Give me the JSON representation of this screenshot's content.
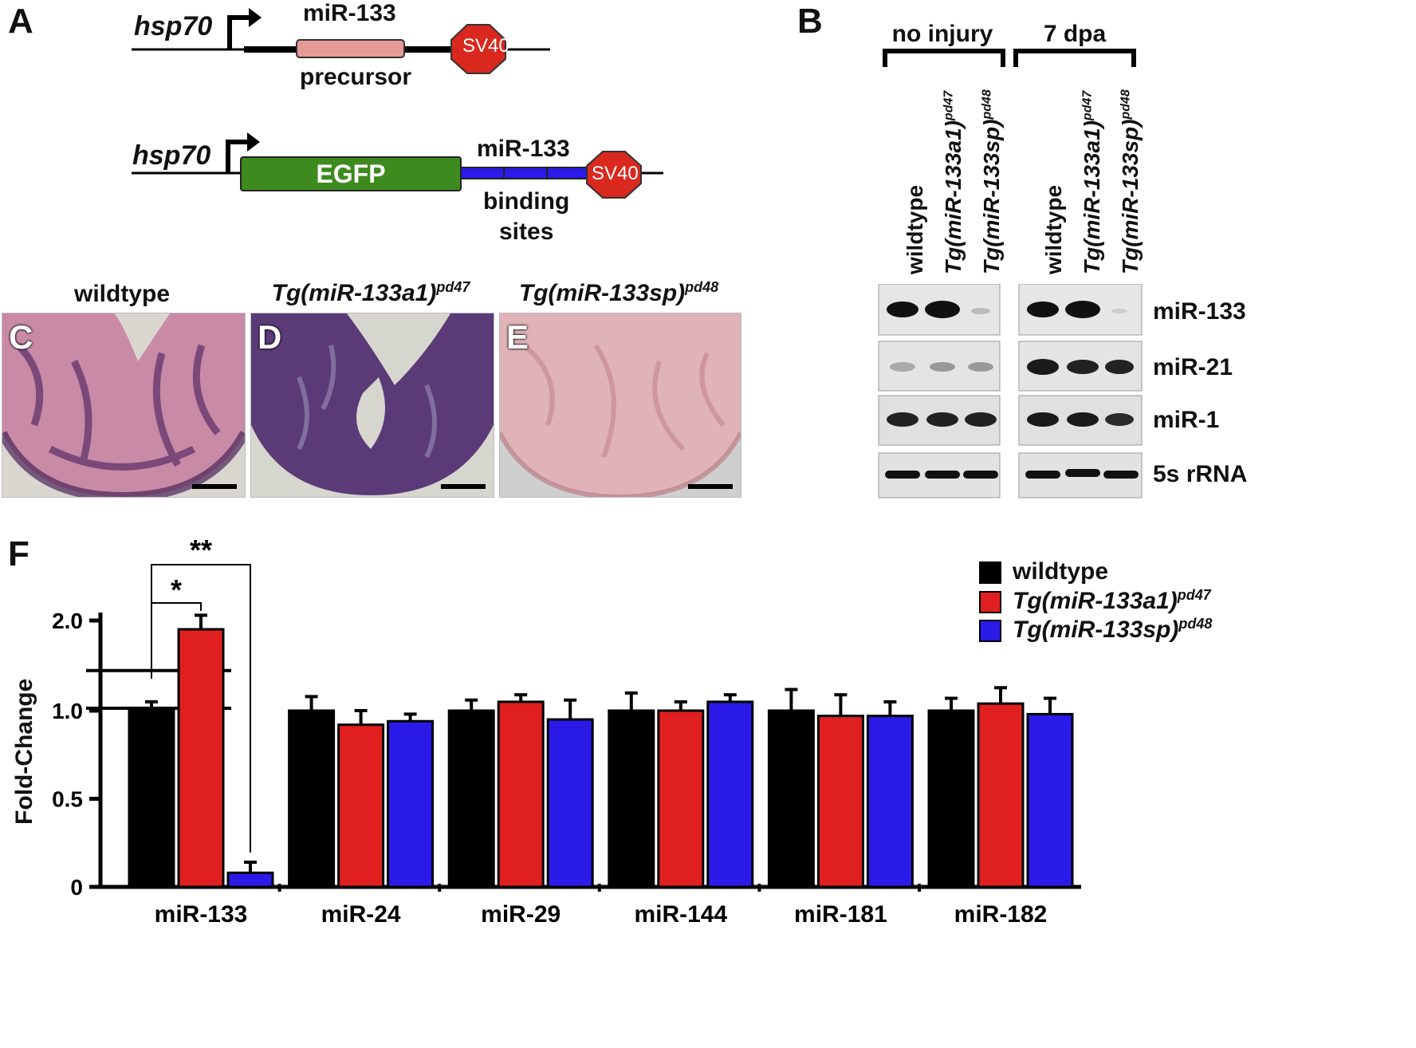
{
  "panels": {
    "A": "A",
    "B": "B",
    "C": "C",
    "D": "D",
    "E": "E",
    "F": "F"
  },
  "construct1": {
    "promoter": "hsp70",
    "mirna": "miR-133",
    "element": "precursor",
    "terminator": "SV40"
  },
  "construct2": {
    "promoter": "hsp70",
    "reporter": "EGFP",
    "mirna": "miR-133",
    "element_line1": "binding",
    "element_line2": "sites",
    "terminator": "SV40"
  },
  "histology": [
    {
      "title": "wildtype",
      "letter": "C"
    },
    {
      "title": "Tg(miR-133a1)",
      "sup": "pd47",
      "letter": "D"
    },
    {
      "title": "Tg(miR-133sp)",
      "sup": "pd48",
      "letter": "E"
    }
  ],
  "blot": {
    "conditions": [
      "no injury",
      "7 dpa"
    ],
    "lanes": [
      {
        "main": "wildtype",
        "sup": ""
      },
      {
        "main": "Tg(miR-133a1)",
        "sup": "pd47"
      },
      {
        "main": "Tg(miR-133sp)",
        "sup": "pd48"
      }
    ],
    "rows": [
      "miR-133",
      "miR-21",
      "miR-1",
      "5s rRNA"
    ]
  },
  "colors": {
    "wildtype": "#000000",
    "tg133a1": "#e02020",
    "tg133sp": "#2a1be8",
    "egfp": "#3d8a1e",
    "sv40": "#d9281e",
    "precursor": "#e69a95",
    "sites": "#2a1be8"
  },
  "significance": {
    "outer": "**",
    "inner": "*"
  },
  "chart_data": {
    "type": "bar",
    "categories": [
      "miR-133",
      "miR-24",
      "miR-29",
      "miR-144",
      "miR-181",
      "miR-182"
    ],
    "series": [
      {
        "name": "wildtype",
        "values": [
          1.0,
          1.0,
          1.0,
          1.0,
          1.0,
          1.0
        ],
        "errors": [
          0.05,
          0.08,
          0.06,
          0.1,
          0.12,
          0.07
        ]
      },
      {
        "name": "Tg(miR-133a1)pd47",
        "values": [
          1.95,
          0.92,
          1.05,
          1.0,
          0.97,
          1.04
        ],
        "errors": [
          0.08,
          0.08,
          0.04,
          0.05,
          0.12,
          0.09
        ]
      },
      {
        "name": "Tg(miR-133sp)pd48",
        "values": [
          0.08,
          0.94,
          0.95,
          1.05,
          0.97,
          0.98
        ],
        "errors": [
          0.06,
          0.04,
          0.11,
          0.04,
          0.08,
          0.09
        ]
      }
    ],
    "ylabel": "Fold-Change",
    "ylim": [
      0,
      2.0
    ],
    "yticks": [
      "0",
      "0.5",
      "1.0",
      "2.0"
    ],
    "axis_break": true,
    "legend": [
      {
        "main": "wildtype",
        "sup": ""
      },
      {
        "main": "Tg(miR-133a1)",
        "sup": "pd47"
      },
      {
        "main": "Tg(miR-133sp)",
        "sup": "pd48"
      }
    ],
    "legend_position": "top-right"
  }
}
